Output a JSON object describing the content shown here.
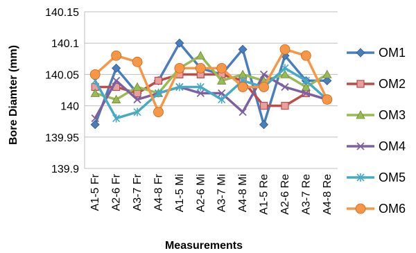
{
  "chart_data": {
    "type": "line",
    "title": "",
    "xlabel": "Measurements",
    "ylabel": "Bore Diamter (mm)",
    "ylim": [
      139.9,
      140.15
    ],
    "yticks": [
      "139.9",
      "139.95",
      "140",
      "140.05",
      "140.1",
      "140.15"
    ],
    "grid": "horizontal",
    "legend_position": "right",
    "categories": [
      "A1-5 Fr",
      "A2-6 Fr",
      "A3-7 Fr",
      "A4-8 Fr",
      "A1-5 Mi",
      "A2-6 Mi",
      "A3-7 Mi",
      "A4-8 Mi",
      "A1-5 Re",
      "A2-6 Re",
      "A3-7 Re",
      "A4-8 Re"
    ],
    "series": [
      {
        "name": "OM1",
        "color": "#4a7ebb",
        "marker": "diamond",
        "values": [
          139.97,
          140.06,
          140.02,
          140.04,
          140.1,
          140.06,
          140.05,
          140.09,
          139.97,
          140.08,
          140.04,
          140.04
        ]
      },
      {
        "name": "OM2",
        "color": "#be4b48",
        "marker": "square",
        "values": [
          140.03,
          140.03,
          140.02,
          140.04,
          140.05,
          140.05,
          140.05,
          140.04,
          140.0,
          140.0,
          140.02,
          140.01
        ]
      },
      {
        "name": "OM3",
        "color": "#98b954",
        "marker": "triangle",
        "values": [
          140.02,
          140.01,
          140.03,
          140.02,
          140.06,
          140.08,
          140.04,
          140.05,
          140.04,
          140.05,
          140.03,
          140.05
        ]
      },
      {
        "name": "OM4",
        "color": "#7d60a0",
        "marker": "x",
        "values": [
          139.98,
          140.04,
          140.01,
          140.02,
          140.03,
          140.02,
          140.02,
          139.99,
          140.05,
          140.03,
          140.02,
          140.01
        ]
      },
      {
        "name": "OM5",
        "color": "#46aac5",
        "marker": "star",
        "values": [
          140.04,
          139.98,
          139.99,
          140.02,
          140.03,
          140.03,
          140.01,
          140.04,
          140.03,
          140.06,
          140.04,
          140.01
        ]
      },
      {
        "name": "OM6",
        "color": "#f79646",
        "marker": "circle",
        "values": [
          140.05,
          140.08,
          140.07,
          139.99,
          140.06,
          140.06,
          140.06,
          140.03,
          140.03,
          140.09,
          140.08,
          140.01
        ]
      }
    ]
  }
}
